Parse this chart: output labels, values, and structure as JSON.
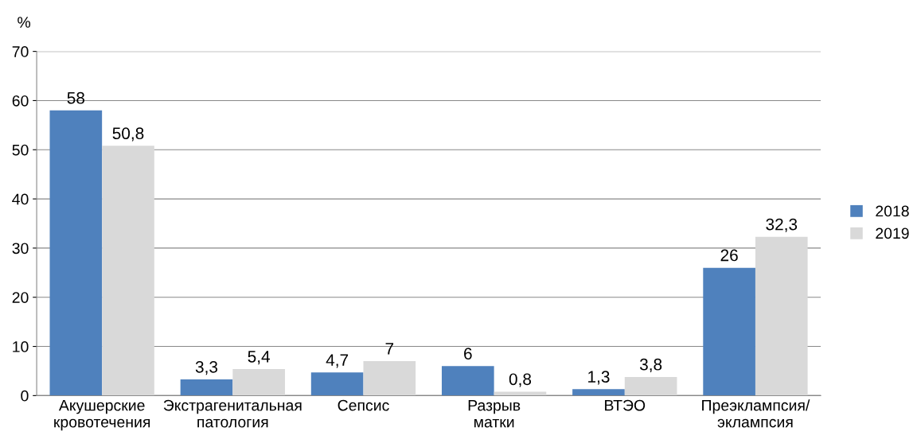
{
  "chart_data": {
    "type": "bar",
    "ylabel": "%",
    "categories": [
      "Акушерские\nкровотечения",
      "Экстрагенитальная\nпатология",
      "Сепсис",
      "Разрыв\nматки",
      "ВТЭО",
      "Преэклампсия/\nэклампсия"
    ],
    "series": [
      {
        "name": "2018",
        "color": "#4f81bd",
        "values": [
          58,
          3.3,
          4.7,
          6,
          1.3,
          26
        ],
        "value_labels": [
          "58",
          "3,3",
          "4,7",
          "6",
          "1,3",
          "26"
        ]
      },
      {
        "name": "2019",
        "color": "#d9d9d9",
        "values": [
          50.8,
          5.4,
          7,
          0.8,
          3.8,
          32.3
        ],
        "value_labels": [
          "50,8",
          "5,4",
          "7",
          "0,8",
          "3,8",
          "32,3"
        ]
      }
    ],
    "ylim": [
      0,
      70
    ],
    "yticks": [
      0,
      10,
      20,
      30,
      40,
      50,
      60,
      70
    ],
    "grid": "y",
    "legend": "right"
  }
}
